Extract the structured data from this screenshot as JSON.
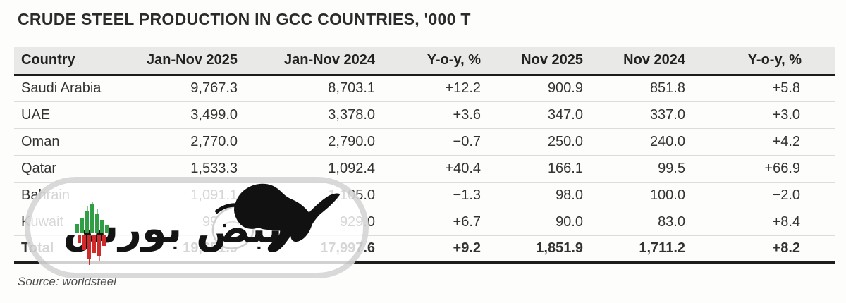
{
  "title": "CRUDE STEEL PRODUCTION IN GCC COUNTRIES, '000 T",
  "source": "Source: worldsteel",
  "table": {
    "headers": [
      "Country",
      "Jan-Nov 2025",
      "Jan-Nov 2024",
      "Y-o-y, %",
      "Nov 2025",
      "Nov 2024",
      "Y-o-y, %"
    ],
    "rows": [
      {
        "country": "Saudi Arabia",
        "values": [
          "9,767.3",
          "8,703.1",
          "+12.2",
          "900.9",
          "851.8",
          "+5.8"
        ],
        "bold": false
      },
      {
        "country": "UAE",
        "values": [
          "3,499.0",
          "3,378.0",
          "+3.6",
          "347.0",
          "337.0",
          "+3.0"
        ],
        "bold": false
      },
      {
        "country": "Oman",
        "values": [
          "2,770.0",
          "2,790.0",
          "−0.7",
          "250.0",
          "240.0",
          "+4.2"
        ],
        "bold": false
      },
      {
        "country": "Qatar",
        "values": [
          "1,533.3",
          "1,092.4",
          "+40.4",
          "166.1",
          "99.5",
          "+66.9"
        ],
        "bold": false
      },
      {
        "country": "Bahrain",
        "values": [
          "1,091.1",
          "1,105.0",
          "−1.3",
          "98.0",
          "100.0",
          "−2.0"
        ],
        "bold": false
      },
      {
        "country": "Kuwait",
        "values": [
          "991.2",
          "929.0",
          "+6.7",
          "90.0",
          "83.0",
          "+8.4"
        ],
        "bold": false
      },
      {
        "country": "Total",
        "values": [
          "19,651.9",
          "17,997.6",
          "+9.2",
          "1,851.9",
          "1,711.2",
          "+8.2"
        ],
        "bold": true
      }
    ]
  },
  "watermark": {
    "arabic_text": "نبض بورس",
    "icons": [
      "bull-icon",
      "bear-icon",
      "candlestick-icon"
    ],
    "candle_green": "#2f9e44",
    "candle_red": "#cf2b2b"
  },
  "colors": {
    "header_bg": "#e9e9e7",
    "header_rule": "#1d1d1d",
    "row_rule": "#dcdcdc",
    "text": "#333333",
    "title_text": "#2b2b2b",
    "source_text": "#4d4d4d",
    "watermark_border": "#b9b9b9"
  },
  "chart_data": {
    "type": "table",
    "title": "CRUDE STEEL PRODUCTION IN GCC COUNTRIES, '000 T",
    "columns": [
      "Country",
      "Jan-Nov 2025",
      "Jan-Nov 2024",
      "Y-o-y, %",
      "Nov 2025",
      "Nov 2024",
      "Y-o-y, %"
    ],
    "rows": [
      [
        "Saudi Arabia",
        9767.3,
        8703.1,
        12.2,
        900.9,
        851.8,
        5.8
      ],
      [
        "UAE",
        3499.0,
        3378.0,
        3.6,
        347.0,
        337.0,
        3.0
      ],
      [
        "Oman",
        2770.0,
        2790.0,
        -0.7,
        250.0,
        240.0,
        4.2
      ],
      [
        "Qatar",
        1533.3,
        1092.4,
        40.4,
        166.1,
        99.5,
        66.9
      ],
      [
        "Bahrain",
        1091.1,
        1105.0,
        -1.3,
        98.0,
        100.0,
        -2.0
      ],
      [
        "Kuwait",
        991.2,
        929.0,
        6.7,
        90.0,
        83.0,
        8.4
      ],
      [
        "Total",
        19651.9,
        17997.6,
        9.2,
        1851.9,
        1711.2,
        8.2
      ]
    ],
    "note": "units: thousand tonnes; source: worldsteel"
  }
}
